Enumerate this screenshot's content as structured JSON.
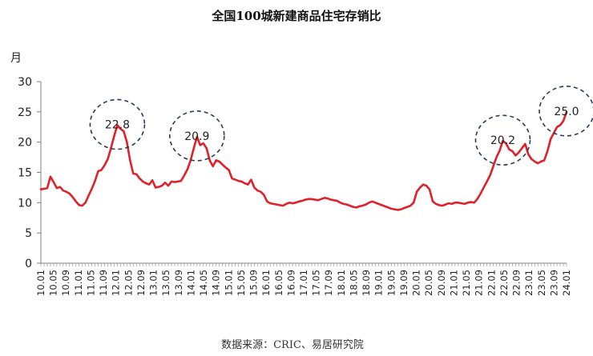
{
  "page": {
    "title": "全国100城新建商品住宅存销比",
    "source": "数据来源：CRIC、易居研究院"
  },
  "chart_data": {
    "type": "line",
    "title": "全国100城新建商品住宅存销比",
    "ylabel": "月",
    "xlabel": "",
    "ylim": [
      0,
      30
    ],
    "yticks": [
      0,
      5,
      10,
      15,
      20,
      25,
      30
    ],
    "grid": false,
    "legend": "none",
    "line_color": "#e0202a",
    "x_tick_labels": [
      "10.01",
      "10.05",
      "10.09",
      "11.01",
      "11.05",
      "11.09",
      "12.01",
      "12.05",
      "12.09",
      "13.01",
      "13.05",
      "13.09",
      "14.01",
      "14.05",
      "14.09",
      "15.01",
      "15.05",
      "15.09",
      "16.01",
      "16.05",
      "16.09",
      "17.01",
      "17.05",
      "17.09",
      "18.01",
      "18.05",
      "18.09",
      "19.01",
      "19.05",
      "19.09",
      "20.01",
      "20.05",
      "20.09",
      "21.01",
      "21.05",
      "21.09",
      "22.01",
      "22.05",
      "22.09",
      "23.01",
      "23.05",
      "23.09",
      "24.01"
    ],
    "series": [
      {
        "values": [
          12.2,
          12.3,
          12.4,
          14.3,
          13.4,
          12.4,
          12.6,
          12.0,
          11.8,
          11.5,
          10.9,
          10.2,
          9.6,
          9.5,
          10.0,
          11.2,
          12.3,
          13.6,
          15.2,
          15.4,
          16.2,
          17.2,
          19.0,
          21.0,
          22.8,
          22.2,
          21.8,
          20.0,
          17.0,
          14.8,
          14.7,
          14.0,
          13.5,
          13.2,
          13.0,
          13.7,
          12.5,
          12.6,
          12.8,
          13.3,
          12.8,
          13.5,
          13.4,
          13.5,
          13.6,
          14.5,
          15.5,
          17.0,
          19.0,
          20.9,
          19.5,
          19.8,
          19.0,
          17.0,
          16.0,
          17.0,
          16.8,
          16.3,
          15.8,
          15.4,
          14.0,
          13.8,
          13.6,
          13.5,
          13.2,
          13.0,
          13.8,
          12.5,
          12.0,
          11.8,
          11.3,
          10.2,
          9.9,
          9.8,
          9.7,
          9.6,
          9.5,
          9.8,
          10.0,
          9.9,
          10.0,
          10.2,
          10.3,
          10.5,
          10.6,
          10.6,
          10.5,
          10.4,
          10.6,
          10.8,
          10.7,
          10.5,
          10.4,
          10.3,
          10.0,
          9.8,
          9.7,
          9.5,
          9.3,
          9.2,
          9.4,
          9.5,
          9.7,
          10.0,
          10.2,
          10.0,
          9.8,
          9.6,
          9.4,
          9.2,
          9.0,
          8.9,
          8.8,
          8.9,
          9.1,
          9.3,
          9.5,
          10.0,
          11.8,
          12.5,
          13.0,
          12.8,
          12.2,
          10.2,
          9.8,
          9.6,
          9.5,
          9.7,
          9.9,
          9.8,
          10.0,
          10.0,
          9.9,
          9.8,
          10.0,
          10.1,
          10.0,
          10.6,
          11.5,
          12.5,
          13.5,
          14.5,
          16.0,
          17.5,
          18.6,
          20.2,
          19.8,
          18.8,
          18.5,
          17.8,
          18.3,
          19.0,
          19.7,
          18.0,
          17.2,
          16.8,
          16.5,
          16.8,
          17.0,
          18.5,
          20.5,
          21.5,
          22.5,
          22.8,
          23.5,
          25.0
        ]
      }
    ],
    "annotations": [
      {
        "label": "22.8",
        "index": 24
      },
      {
        "label": "20.9",
        "index": 49
      },
      {
        "label": "20.2",
        "index": 145
      },
      {
        "label": "25.0",
        "index": 165
      }
    ]
  }
}
